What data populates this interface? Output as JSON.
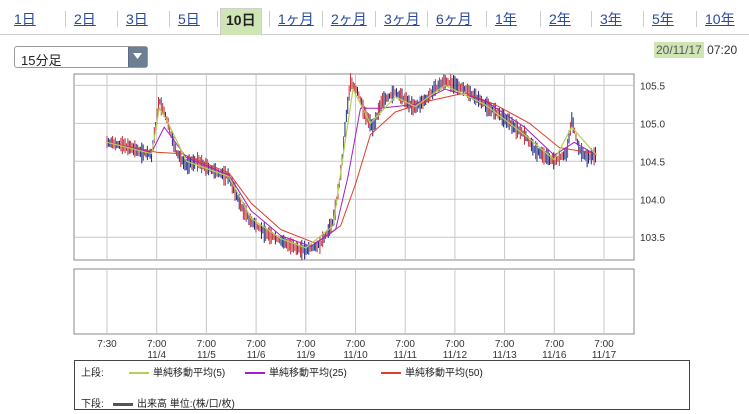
{
  "tabs": [
    {
      "label": "1日",
      "active": false
    },
    {
      "label": "2日",
      "active": false
    },
    {
      "label": "3日",
      "active": false
    },
    {
      "label": "5日",
      "active": false
    },
    {
      "label": "10日",
      "active": true
    },
    {
      "label": "1ヶ月",
      "active": false
    },
    {
      "label": "2ヶ月",
      "active": false
    },
    {
      "label": "3ヶ月",
      "active": false
    },
    {
      "label": "6ヶ月",
      "active": false
    },
    {
      "label": "1年",
      "active": false
    },
    {
      "label": "2年",
      "active": false
    },
    {
      "label": "3年",
      "active": false
    },
    {
      "label": "5年",
      "active": false
    },
    {
      "label": "10年",
      "active": false
    }
  ],
  "interval_select": {
    "value": "15分足"
  },
  "timestamp": {
    "date": "20/11/17",
    "time": "07:20"
  },
  "legend": {
    "upper_label": "上段:",
    "lower_label": "下段:",
    "items": [
      {
        "label": "単純移動平均(5)",
        "color": "#b5cf52"
      },
      {
        "label": "単純移動平均(25)",
        "color": "#a020c0"
      },
      {
        "label": "単純移動平均(50)",
        "color": "#e0402a"
      }
    ],
    "volume": {
      "label": "出来高 単位:(株/口/枚)",
      "color": "#555555"
    }
  },
  "chart_data": {
    "type": "line",
    "ylim": [
      103.2,
      105.65
    ],
    "y_ticks": [
      "105.5",
      "105.0",
      "104.5",
      "104.0",
      "103.5"
    ],
    "y_tick_values": [
      105.5,
      105.0,
      104.5,
      104.0,
      103.5
    ],
    "x_ticks": [
      {
        "time": "7:30",
        "date": ""
      },
      {
        "time": "7:00",
        "date": "11/4"
      },
      {
        "time": "7:00",
        "date": "11/5"
      },
      {
        "time": "7:00",
        "date": "11/6"
      },
      {
        "time": "7:00",
        "date": "11/9"
      },
      {
        "time": "7:00",
        "date": "11/10"
      },
      {
        "time": "7:00",
        "date": "11/11"
      },
      {
        "time": "7:00",
        "date": "11/12"
      },
      {
        "time": "7:00",
        "date": "11/13"
      },
      {
        "time": "7:00",
        "date": "11/16"
      },
      {
        "time": "7:00",
        "date": "11/17"
      }
    ],
    "price_path": [
      [
        0.0,
        104.75
      ],
      [
        0.35,
        104.7
      ],
      [
        0.7,
        104.62
      ],
      [
        0.9,
        104.58
      ],
      [
        1.05,
        105.3
      ],
      [
        1.2,
        105.05
      ],
      [
        1.4,
        104.6
      ],
      [
        1.6,
        104.45
      ],
      [
        1.8,
        104.5
      ],
      [
        2.0,
        104.42
      ],
      [
        2.2,
        104.35
      ],
      [
        2.45,
        104.3
      ],
      [
        2.7,
        103.9
      ],
      [
        2.9,
        103.7
      ],
      [
        3.2,
        103.55
      ],
      [
        3.5,
        103.45
      ],
      [
        3.8,
        103.35
      ],
      [
        4.0,
        103.33
      ],
      [
        4.3,
        103.4
      ],
      [
        4.55,
        103.7
      ],
      [
        4.7,
        104.3
      ],
      [
        4.8,
        105.0
      ],
      [
        4.9,
        105.55
      ],
      [
        5.05,
        105.4
      ],
      [
        5.2,
        105.1
      ],
      [
        5.35,
        104.95
      ],
      [
        5.55,
        105.3
      ],
      [
        5.8,
        105.4
      ],
      [
        6.0,
        105.3
      ],
      [
        6.2,
        105.2
      ],
      [
        6.4,
        105.3
      ],
      [
        6.6,
        105.45
      ],
      [
        6.8,
        105.55
      ],
      [
        7.0,
        105.5
      ],
      [
        7.2,
        105.45
      ],
      [
        7.4,
        105.35
      ],
      [
        7.6,
        105.25
      ],
      [
        7.8,
        105.15
      ],
      [
        8.0,
        105.05
      ],
      [
        8.2,
        104.95
      ],
      [
        8.4,
        104.85
      ],
      [
        8.6,
        104.65
      ],
      [
        8.85,
        104.55
      ],
      [
        9.0,
        104.5
      ],
      [
        9.25,
        104.6
      ],
      [
        9.35,
        105.05
      ],
      [
        9.5,
        104.65
      ],
      [
        9.65,
        104.55
      ],
      [
        9.85,
        104.58
      ]
    ],
    "sma5": [
      [
        0.0,
        104.75
      ],
      [
        0.9,
        104.6
      ],
      [
        1.05,
        105.2
      ],
      [
        1.2,
        105.05
      ],
      [
        1.6,
        104.5
      ],
      [
        2.45,
        104.3
      ],
      [
        2.9,
        103.75
      ],
      [
        3.5,
        103.48
      ],
      [
        4.0,
        103.36
      ],
      [
        4.55,
        103.65
      ],
      [
        4.8,
        104.8
      ],
      [
        4.95,
        105.45
      ],
      [
        5.3,
        105.0
      ],
      [
        5.8,
        105.35
      ],
      [
        6.2,
        105.22
      ],
      [
        6.8,
        105.5
      ],
      [
        7.6,
        105.25
      ],
      [
        8.4,
        104.85
      ],
      [
        9.0,
        104.52
      ],
      [
        9.35,
        104.95
      ],
      [
        9.85,
        104.58
      ]
    ],
    "sma25": [
      [
        0.0,
        104.75
      ],
      [
        0.9,
        104.62
      ],
      [
        1.15,
        104.95
      ],
      [
        1.6,
        104.55
      ],
      [
        2.45,
        104.32
      ],
      [
        2.9,
        103.85
      ],
      [
        3.5,
        103.52
      ],
      [
        4.1,
        103.38
      ],
      [
        4.6,
        103.6
      ],
      [
        4.85,
        104.3
      ],
      [
        5.1,
        105.2
      ],
      [
        5.5,
        105.2
      ],
      [
        6.2,
        105.25
      ],
      [
        6.8,
        105.45
      ],
      [
        7.6,
        105.3
      ],
      [
        8.4,
        104.95
      ],
      [
        9.0,
        104.58
      ],
      [
        9.4,
        104.75
      ],
      [
        9.85,
        104.58
      ]
    ],
    "sma50": [
      [
        0.0,
        104.75
      ],
      [
        1.0,
        104.62
      ],
      [
        1.5,
        104.6
      ],
      [
        2.45,
        104.35
      ],
      [
        2.9,
        103.95
      ],
      [
        3.5,
        103.6
      ],
      [
        4.2,
        103.42
      ],
      [
        4.7,
        103.65
      ],
      [
        5.0,
        104.2
      ],
      [
        5.3,
        104.85
      ],
      [
        5.8,
        105.15
      ],
      [
        6.5,
        105.3
      ],
      [
        7.2,
        105.4
      ],
      [
        7.8,
        105.25
      ],
      [
        8.5,
        105.0
      ],
      [
        9.1,
        104.68
      ],
      [
        9.85,
        104.6
      ]
    ],
    "series_colors": {
      "price": "#1b2a80",
      "sma5": "#b5cf52",
      "sma25": "#a020c0",
      "sma50": "#e0402a"
    }
  }
}
